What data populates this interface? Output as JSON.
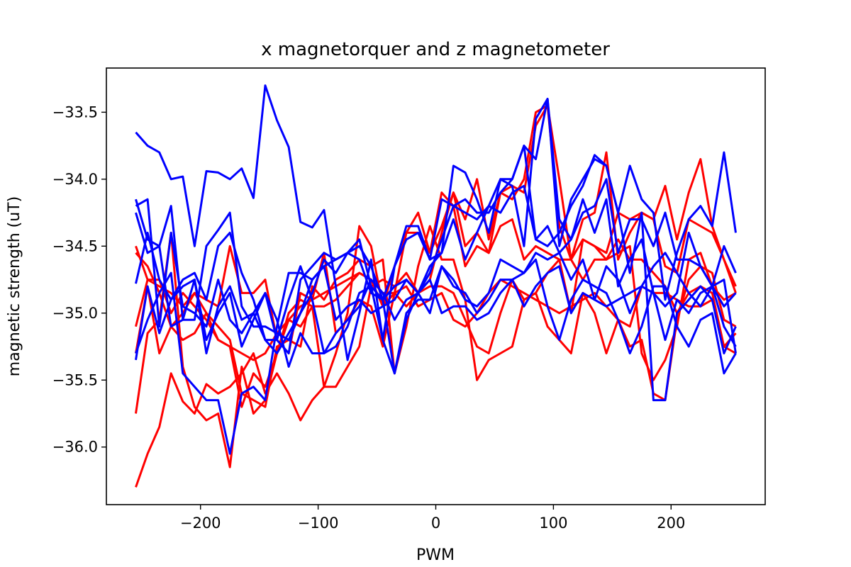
{
  "chart_data": {
    "type": "line",
    "title": "x magnetorquer and z magnetometer",
    "xlabel": "PWM",
    "ylabel": "magnetic strength (uT)",
    "xlim": [
      -280,
      280
    ],
    "ylim": [
      -36.43,
      -33.17
    ],
    "xticks": [
      -200,
      -100,
      0,
      100,
      200
    ],
    "xtick_labels": [
      "−200",
      "−100",
      "0",
      "100",
      "200"
    ],
    "yticks": [
      -36.0,
      -35.5,
      -35.0,
      -34.5,
      -34.0,
      -33.5
    ],
    "ytick_labels": [
      "−36.0",
      "−35.5",
      "−35.0",
      "−34.5",
      "−34.0",
      "−33.5"
    ],
    "grid": false,
    "x": [
      -255,
      -245,
      -235,
      -225,
      -215,
      -205,
      -195,
      -185,
      -175,
      -165,
      -155,
      -145,
      -135,
      -125,
      -115,
      -105,
      -95,
      -85,
      -75,
      -65,
      -55,
      -45,
      -35,
      -25,
      -15,
      -5,
      5,
      15,
      25,
      35,
      45,
      55,
      65,
      75,
      85,
      95,
      105,
      115,
      125,
      135,
      145,
      155,
      165,
      175,
      185,
      195,
      205,
      215,
      225,
      235,
      245,
      255
    ],
    "series": [
      {
        "color": "#ff0000",
        "values": [
          -36.3,
          -36.05,
          -35.85,
          -35.45,
          -35.66,
          -35.75,
          -35.53,
          -35.6,
          -35.55,
          -35.45,
          -35.3,
          -35.6,
          -35.45,
          -35.6,
          -35.8,
          -35.65,
          -35.55,
          -35.3,
          -35.0,
          -34.35,
          -34.5,
          -34.95,
          -34.85,
          -34.95,
          -34.85,
          -34.8,
          -34.8,
          -34.85,
          -35.05,
          -35.25,
          -35.3,
          -35.0,
          -34.75,
          -34.9,
          -34.85,
          -34.7,
          -34.6,
          -34.6,
          -34.75,
          -34.6,
          -34.6,
          -34.45,
          -34.6,
          -34.6,
          -34.7,
          -34.8,
          -35.0,
          -34.85,
          -34.8,
          -34.85,
          -35.25,
          -35.15
        ]
      },
      {
        "color": "#ff0000",
        "values": [
          -35.1,
          -34.75,
          -34.75,
          -35.0,
          -34.85,
          -34.95,
          -35.05,
          -35.2,
          -35.25,
          -35.3,
          -35.35,
          -35.3,
          -35.15,
          -35.05,
          -34.95,
          -34.9,
          -34.85,
          -34.8,
          -34.75,
          -34.7,
          -34.75,
          -34.85,
          -34.85,
          -34.8,
          -34.95,
          -34.9,
          -34.85,
          -35.05,
          -35.1,
          -35.0,
          -34.85,
          -34.75,
          -34.8,
          -34.85,
          -34.9,
          -34.95,
          -35.0,
          -34.95,
          -34.9,
          -34.85,
          -34.95,
          -35.05,
          -35.1,
          -34.8,
          -34.85,
          -34.85,
          -34.9,
          -34.95,
          -34.95,
          -34.9,
          -35.25,
          -35.3
        ]
      },
      {
        "color": "#ff0000",
        "values": [
          -35.75,
          -35.15,
          -35.05,
          -34.4,
          -35.4,
          -35.7,
          -35.8,
          -35.75,
          -36.15,
          -35.4,
          -35.75,
          -35.65,
          -35.3,
          -35.05,
          -35.1,
          -34.95,
          -34.95,
          -34.9,
          -34.8,
          -34.7,
          -34.75,
          -34.95,
          -34.65,
          -34.4,
          -34.4,
          -34.55,
          -34.35,
          -34.1,
          -34.3,
          -34.0,
          -34.45,
          -34.1,
          -34.15,
          -34.0,
          -33.5,
          -33.45,
          -34.0,
          -34.6,
          -34.3,
          -34.25,
          -33.8,
          -34.6,
          -34.4,
          -34.25,
          -34.3,
          -34.05,
          -34.45,
          -34.1,
          -33.85,
          -34.35,
          -34.6,
          -34.85
        ]
      },
      {
        "color": "#ff0000",
        "values": [
          -34.55,
          -34.65,
          -34.85,
          -35.1,
          -35.0,
          -34.85,
          -34.9,
          -34.95,
          -34.5,
          -34.85,
          -34.85,
          -34.75,
          -35.2,
          -35.3,
          -34.85,
          -34.9,
          -34.55,
          -35.15,
          -35.05,
          -34.9,
          -34.95,
          -35.25,
          -34.85,
          -34.4,
          -34.25,
          -34.55,
          -34.1,
          -34.2,
          -34.65,
          -34.5,
          -34.55,
          -34.1,
          -34.05,
          -34.1,
          -33.6,
          -33.45,
          -34.35,
          -34.6,
          -34.45,
          -34.5,
          -34.6,
          -34.55,
          -34.5,
          -35.3,
          -35.5,
          -35.35,
          -35.1,
          -34.6,
          -34.55,
          -34.8,
          -34.9,
          -34.85
        ]
      },
      {
        "color": "#ff0000",
        "values": [
          -34.5,
          -34.75,
          -34.8,
          -34.85,
          -34.95,
          -34.85,
          -35.0,
          -35.1,
          -35.2,
          -35.6,
          -35.65,
          -35.7,
          -35.25,
          -35.2,
          -35.25,
          -34.8,
          -34.9,
          -34.75,
          -34.7,
          -34.6,
          -34.65,
          -34.6,
          -35.45,
          -35.1,
          -34.65,
          -34.35,
          -34.6,
          -34.6,
          -34.9,
          -35.5,
          -35.35,
          -35.3,
          -35.25,
          -34.9,
          -34.85,
          -35.1,
          -35.2,
          -35.3,
          -34.85,
          -35.0,
          -35.3,
          -35.05,
          -35.25,
          -35.2,
          -35.6,
          -35.65,
          -35.05,
          -34.75,
          -34.65,
          -34.7,
          -35.05,
          -35.1
        ]
      },
      {
        "color": "#ff0000",
        "values": [
          -35.3,
          -34.8,
          -35.3,
          -35.1,
          -35.2,
          -35.15,
          -35.0,
          -35.2,
          -35.25,
          -35.7,
          -35.45,
          -35.55,
          -35.3,
          -35.0,
          -34.9,
          -34.95,
          -35.55,
          -35.55,
          -35.4,
          -35.25,
          -34.8,
          -34.75,
          -34.8,
          -34.7,
          -34.85,
          -34.75,
          -34.4,
          -34.1,
          -34.5,
          -34.4,
          -34.55,
          -34.35,
          -34.3,
          -34.6,
          -34.5,
          -34.55,
          -34.6,
          -35.0,
          -34.45,
          -34.5,
          -34.55,
          -34.25,
          -34.3,
          -34.25,
          -34.3,
          -34.65,
          -34.7,
          -34.3,
          -34.35,
          -34.4,
          -34.6,
          -34.8
        ]
      },
      {
        "color": "#0000ff",
        "values": [
          -33.65,
          -33.75,
          -33.8,
          -34.0,
          -33.98,
          -34.5,
          -33.94,
          -33.95,
          -34.0,
          -33.92,
          -34.14,
          -33.3,
          -33.56,
          -33.76,
          -34.32,
          -34.36,
          -34.23,
          -34.8,
          -35.35,
          -35.0,
          -34.6,
          -35.2,
          -35.45,
          -35.05,
          -34.85,
          -34.65,
          -34.55,
          -34.3,
          -34.6,
          -34.4,
          -34.2,
          -34.25,
          -34.1,
          -34.05,
          -34.45,
          -34.5,
          -34.4,
          -34.2,
          -34.05,
          -33.82,
          -33.9,
          -34.25,
          -33.9,
          -34.15,
          -34.25,
          -34.9,
          -34.55,
          -34.3,
          -34.2,
          -34.35,
          -33.8,
          -34.4
        ]
      },
      {
        "color": "#0000ff",
        "values": [
          -34.15,
          -34.45,
          -34.5,
          -35.1,
          -35.05,
          -34.75,
          -35.3,
          -34.95,
          -34.8,
          -35.05,
          -35.0,
          -35.2,
          -35.3,
          -35.15,
          -35.0,
          -34.85,
          -34.6,
          -34.7,
          -34.55,
          -34.6,
          -34.85,
          -34.9,
          -34.8,
          -34.75,
          -34.85,
          -35.0,
          -34.65,
          -34.75,
          -34.9,
          -34.95,
          -34.85,
          -34.6,
          -34.65,
          -34.7,
          -34.55,
          -34.6,
          -34.55,
          -34.75,
          -34.6,
          -34.9,
          -34.95,
          -34.9,
          -34.85,
          -34.8,
          -34.65,
          -34.55,
          -34.7,
          -34.85,
          -34.95,
          -34.8,
          -34.95,
          -34.85
        ]
      },
      {
        "color": "#0000ff",
        "values": [
          -34.25,
          -34.55,
          -34.5,
          -34.2,
          -35.05,
          -35.05,
          -34.5,
          -34.38,
          -34.25,
          -34.95,
          -35.1,
          -35.1,
          -35.15,
          -35.2,
          -35.0,
          -34.75,
          -34.65,
          -35.05,
          -34.95,
          -34.9,
          -35.0,
          -34.95,
          -34.9,
          -34.75,
          -34.85,
          -34.7,
          -34.45,
          -34.2,
          -34.15,
          -34.25,
          -34.25,
          -34.1,
          -34.0,
          -33.75,
          -34.45,
          -34.35,
          -34.55,
          -34.45,
          -34.25,
          -34.2,
          -34.0,
          -34.55,
          -34.3,
          -34.3,
          -34.5,
          -34.25,
          -34.6,
          -34.6,
          -34.65,
          -34.8,
          -34.5,
          -34.7
        ]
      },
      {
        "color": "#0000ff",
        "values": [
          -34.78,
          -34.4,
          -34.75,
          -34.9,
          -34.75,
          -34.7,
          -34.9,
          -34.5,
          -34.4,
          -34.7,
          -34.9,
          -35.2,
          -35.2,
          -35.3,
          -34.75,
          -34.65,
          -34.55,
          -34.6,
          -34.55,
          -34.5,
          -34.65,
          -34.9,
          -34.65,
          -34.45,
          -34.4,
          -34.6,
          -34.55,
          -33.9,
          -33.95,
          -34.15,
          -34.4,
          -34.0,
          -34.05,
          -34.5,
          -33.55,
          -33.4,
          -34.3,
          -34.45,
          -34.15,
          -34.4,
          -34.15,
          -34.8,
          -34.6,
          -34.45,
          -34.85,
          -34.95,
          -34.85,
          -34.4,
          -34.65,
          -34.8,
          -34.75,
          -35.3
        ]
      },
      {
        "color": "#0000ff",
        "values": [
          -35.3,
          -35.05,
          -34.85,
          -34.7,
          -35.45,
          -35.55,
          -35.65,
          -35.65,
          -36.05,
          -35.6,
          -35.55,
          -35.65,
          -35.1,
          -34.7,
          -34.7,
          -34.75,
          -34.65,
          -34.6,
          -34.55,
          -34.45,
          -34.8,
          -35.2,
          -34.65,
          -34.35,
          -34.35,
          -34.6,
          -34.15,
          -34.2,
          -34.25,
          -34.3,
          -34.2,
          -34.0,
          -34.0,
          -33.75,
          -33.85,
          -33.4,
          -34.5,
          -34.15,
          -34.0,
          -33.85,
          -33.9,
          -34.25,
          -34.7,
          -34.25,
          -35.65,
          -35.65,
          -35.0,
          -34.9,
          -34.8,
          -34.9,
          -35.3,
          -35.1
        ]
      },
      {
        "color": "#0000ff",
        "values": [
          -35.35,
          -34.8,
          -35.15,
          -34.9,
          -34.8,
          -34.75,
          -35.2,
          -35.0,
          -34.85,
          -35.25,
          -35.05,
          -34.85,
          -35.05,
          -35.4,
          -35.15,
          -35.3,
          -35.3,
          -35.15,
          -35.05,
          -34.95,
          -34.75,
          -34.85,
          -35.05,
          -34.9,
          -34.85,
          -34.75,
          -35.0,
          -34.95,
          -34.95,
          -35.05,
          -35.0,
          -34.85,
          -34.75,
          -34.7,
          -34.6,
          -34.95,
          -35.2,
          -34.9,
          -34.75,
          -34.8,
          -34.85,
          -35.05,
          -35.3,
          -35.1,
          -34.8,
          -34.8,
          -35.1,
          -35.25,
          -35.05,
          -35.0,
          -35.45,
          -35.3
        ]
      },
      {
        "color": "#0000ff",
        "values": [
          -34.2,
          -34.15,
          -35.1,
          -34.4,
          -34.95,
          -35.0,
          -35.1,
          -34.75,
          -35.05,
          -35.15,
          -35.0,
          -34.85,
          -35.2,
          -34.9,
          -34.65,
          -34.9,
          -35.3,
          -35.25,
          -35.1,
          -34.85,
          -34.8,
          -34.9,
          -35.45,
          -35.0,
          -34.9,
          -34.9,
          -34.65,
          -34.8,
          -34.85,
          -35.0,
          -34.9,
          -34.75,
          -34.75,
          -34.95,
          -34.8,
          -34.7,
          -34.65,
          -35.0,
          -34.85,
          -34.9,
          -34.65,
          -34.75,
          -35.0,
          -34.8,
          -34.85,
          -35.2,
          -34.9,
          -35.0,
          -34.85,
          -34.8,
          -35.1,
          -35.25
        ]
      }
    ]
  }
}
